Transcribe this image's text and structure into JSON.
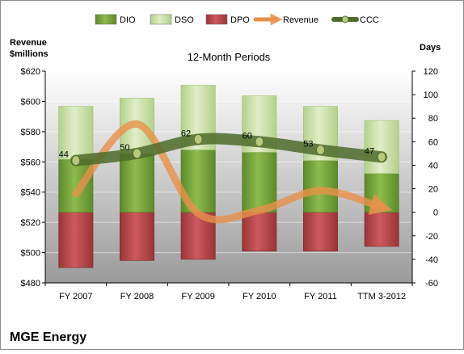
{
  "chart_data": {
    "type": "bar",
    "subtitle": "12-Month Periods",
    "company": "MGE Energy",
    "y_left_label": [
      "Revenue",
      "$millions"
    ],
    "y_right_label": "Days",
    "categories": [
      "FY 2007",
      "FY 2008",
      "FY 2009",
      "FY 2010",
      "FY 2011",
      "TTM 3-2012"
    ],
    "y_left_ticks": [
      "$480",
      "$500",
      "$520",
      "$540",
      "$560",
      "$580",
      "$600",
      "$620"
    ],
    "y_right_ticks": [
      "-60",
      "-40",
      "-20",
      "0",
      "20",
      "40",
      "60",
      "80",
      "100",
      "120"
    ],
    "ylim_left": [
      480,
      620
    ],
    "ylim_right": [
      -60,
      120
    ],
    "legend": [
      "DIO",
      "DSO",
      "DPO",
      "Revenue",
      "CCC"
    ],
    "legend_position": "top",
    "grid": true,
    "series": [
      {
        "name": "DIO",
        "axis": "right",
        "values": [
          45,
          50,
          53,
          51,
          44,
          33
        ]
      },
      {
        "name": "DSO",
        "axis": "right",
        "values": [
          45,
          47,
          55,
          48,
          46,
          45
        ]
      },
      {
        "name": "DPO",
        "axis": "right",
        "values": [
          -47,
          -41,
          -40,
          -33,
          -33,
          -29
        ]
      },
      {
        "name": "Revenue",
        "axis": "left",
        "values": [
          539,
          585,
          526,
          528,
          541,
          530
        ]
      },
      {
        "name": "CCC",
        "axis": "right",
        "values": [
          44,
          50,
          62,
          60,
          53,
          47
        ]
      }
    ],
    "data_labels": [
      "44",
      "50",
      "62",
      "60",
      "53",
      "47"
    ],
    "colors": {
      "DIO": "#7aa93c",
      "DSO": "#c6dea0",
      "DPO": "#b8474a",
      "Revenue": "#e8914a",
      "CCC": "#4e6b2b",
      "plot_background_top": "#ffffff",
      "plot_background_bottom": "#9a9a9a"
    }
  }
}
